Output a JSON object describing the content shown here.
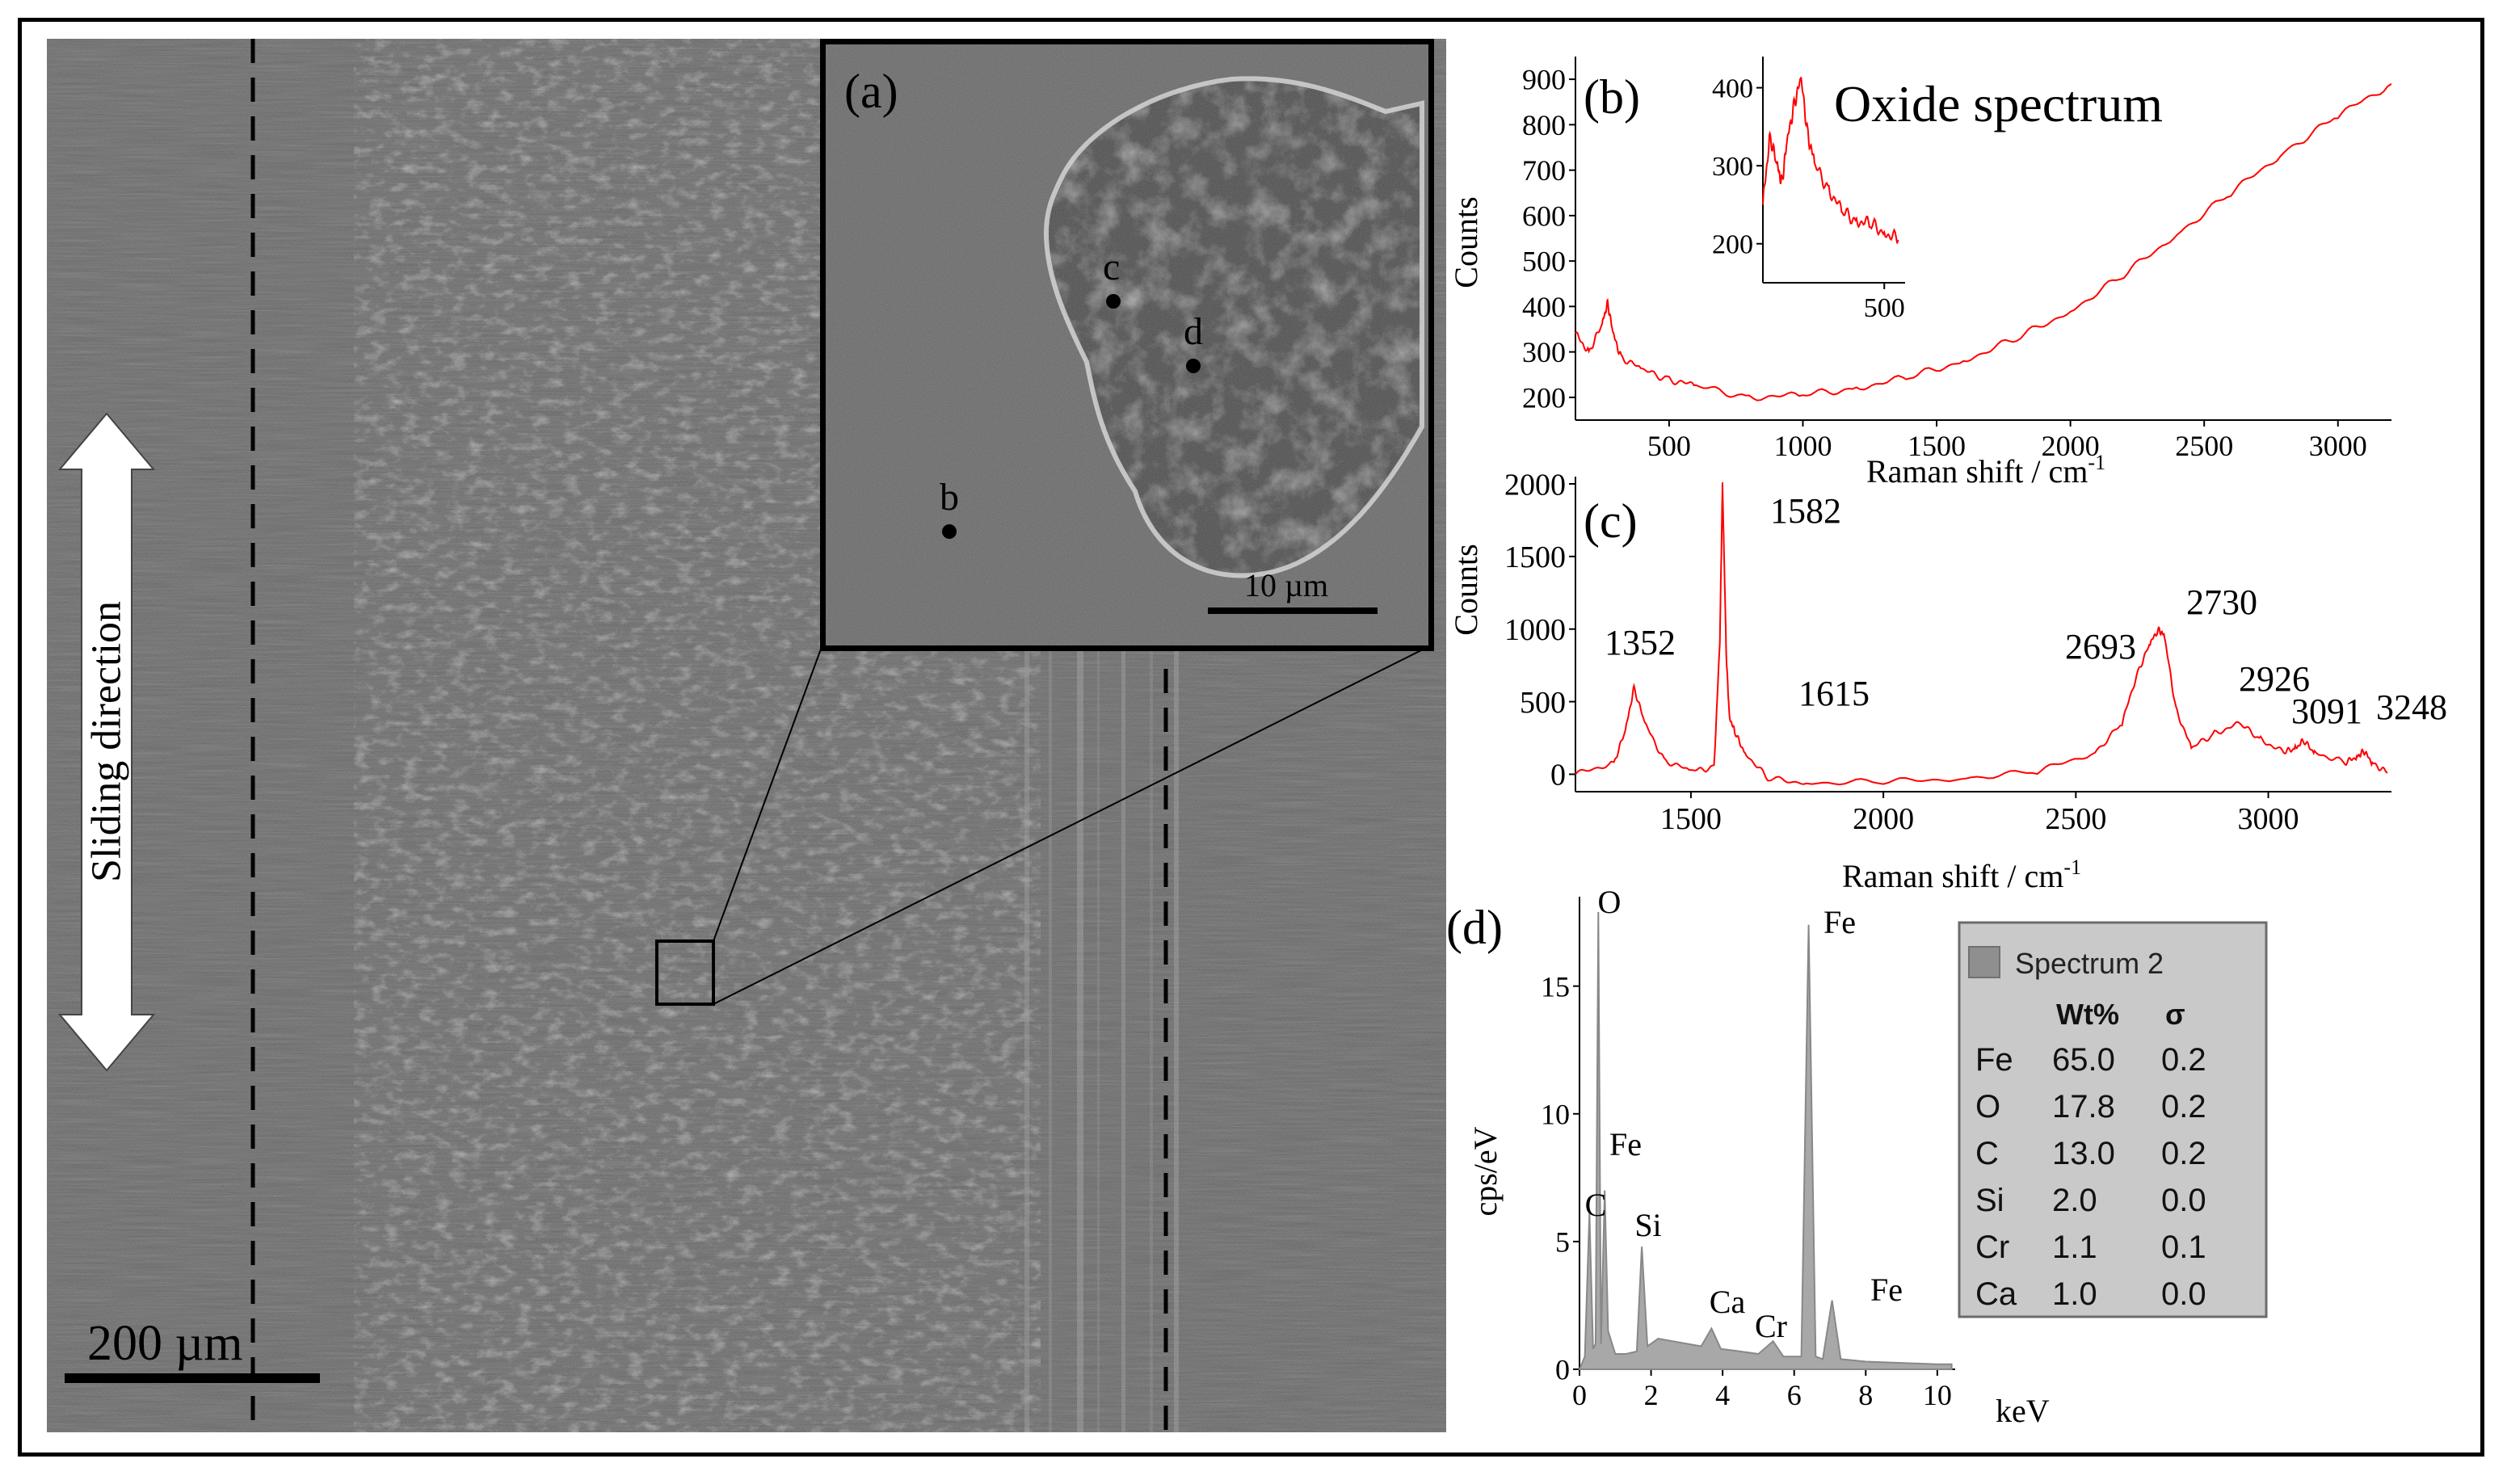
{
  "sem_panel": {
    "scale_bar_label": "200 µm",
    "arrow_label": "Sliding direction"
  },
  "inset_a": {
    "panel_label": "(a)",
    "scale_bar_label": "10 µm",
    "points": [
      "b",
      "c",
      "d"
    ]
  },
  "panel_b": {
    "panel_label": "(b)",
    "title": "Oxide spectrum",
    "ylabel": "Counts",
    "xlabel": "Raman shift / cm",
    "xlabel_sup": "-1"
  },
  "panel_c": {
    "panel_label": "(c)",
    "ylabel": "Counts",
    "xlabel": "Raman shift / cm",
    "xlabel_sup": "-1"
  },
  "panel_d": {
    "panel_label": "(d)",
    "ylabel": "cps/eV",
    "xlabel": "keV"
  },
  "eds_table": {
    "title": "Spectrum 2",
    "col_wt": "Wt%",
    "col_sigma": "σ",
    "rows": [
      {
        "el": "Fe",
        "wt": "65.0",
        "sigma": "0.2"
      },
      {
        "el": "O",
        "wt": "17.8",
        "sigma": "0.2"
      },
      {
        "el": "C",
        "wt": "13.0",
        "sigma": "0.2"
      },
      {
        "el": "Si",
        "wt": "2.0",
        "sigma": "0.0"
      },
      {
        "el": "Cr",
        "wt": "1.1",
        "sigma": "0.1"
      },
      {
        "el": "Ca",
        "wt": "1.0",
        "sigma": "0.0"
      }
    ]
  },
  "colors": {
    "raman": "#ff0000",
    "eds_fill": "#a8a8a8",
    "sem_bg": "#5e5e5e"
  },
  "chart_data": [
    {
      "type": "line",
      "name": "b",
      "xlim": [
        150,
        3200
      ],
      "ylim": [
        150,
        950
      ],
      "xticks": [
        500,
        1000,
        1500,
        2000,
        2500,
        3000
      ],
      "yticks": [
        200,
        300,
        400,
        500,
        600,
        700,
        800,
        900
      ],
      "series": [
        {
          "x": [
            150,
            200,
            250,
            270,
            290,
            320,
            400,
            500,
            600,
            800,
            1000,
            1200,
            1400,
            1600,
            1800,
            2000,
            2200,
            2400,
            2600,
            2800,
            3000,
            3200
          ],
          "y": [
            340,
            300,
            360,
            410,
            340,
            290,
            260,
            240,
            225,
            200,
            205,
            220,
            245,
            280,
            330,
            390,
            470,
            560,
            650,
            740,
            820,
            890
          ]
        }
      ]
    },
    {
      "type": "line",
      "name": "b-inset",
      "xlim": [
        150,
        560
      ],
      "ylim": [
        150,
        440
      ],
      "xticks": [
        500
      ],
      "yticks": [
        200,
        300,
        400
      ],
      "series": [
        {
          "x": [
            150,
            170,
            190,
            205,
            220,
            240,
            260,
            280,
            300,
            340,
            380,
            420,
            460,
            500,
            540
          ],
          "y": [
            250,
            340,
            300,
            280,
            330,
            380,
            410,
            340,
            300,
            270,
            240,
            230,
            225,
            215,
            205
          ]
        }
      ]
    },
    {
      "type": "line",
      "name": "c",
      "xlim": [
        1200,
        3320
      ],
      "ylim": [
        -120,
        2050
      ],
      "xticks": [
        1500,
        2000,
        2500,
        3000
      ],
      "yticks": [
        0,
        500,
        1000,
        1500,
        2000
      ],
      "series": [
        {
          "x": [
            1200,
            1300,
            1330,
            1352,
            1380,
            1430,
            1500,
            1560,
            1575,
            1582,
            1592,
            1600,
            1615,
            1640,
            1700,
            1800,
            2000,
            2200,
            2400,
            2550,
            2620,
            2660,
            2693,
            2715,
            2730,
            2760,
            2800,
            2860,
            2926,
            2980,
            3040,
            3070,
            3091,
            3120,
            3200,
            3230,
            3248,
            3270,
            3310
          ],
          "y": [
            0,
            80,
            300,
            600,
            350,
            100,
            20,
            50,
            900,
            2000,
            800,
            400,
            280,
            150,
            -30,
            -60,
            -50,
            -30,
            20,
            150,
            350,
            700,
            900,
            1000,
            950,
            450,
            180,
            280,
            350,
            240,
            150,
            180,
            230,
            150,
            80,
            120,
            160,
            80,
            10
          ]
        }
      ],
      "annotations": [
        {
          "x": 1352,
          "text": "1352"
        },
        {
          "x": 1582,
          "text": "1582"
        },
        {
          "x": 1615,
          "text": "1615"
        },
        {
          "x": 2693,
          "text": "2693"
        },
        {
          "x": 2730,
          "text": "2730"
        },
        {
          "x": 2926,
          "text": "2926"
        },
        {
          "x": 3091,
          "text": "3091"
        },
        {
          "x": 3248,
          "text": "3248"
        }
      ]
    },
    {
      "type": "area",
      "name": "d",
      "xlim": [
        0,
        10.5
      ],
      "ylim": [
        0,
        18.5
      ],
      "xticks": [
        0,
        2,
        4,
        6,
        8,
        10
      ],
      "yticks": [
        0,
        5,
        10,
        15
      ],
      "series": [
        {
          "x": [
            0.0,
            0.15,
            0.277,
            0.38,
            0.45,
            0.525,
            0.6,
            0.705,
            0.8,
            1.0,
            1.3,
            1.6,
            1.74,
            1.9,
            2.2,
            2.6,
            3.0,
            3.4,
            3.69,
            3.95,
            4.5,
            5.0,
            5.41,
            5.7,
            6.0,
            6.2,
            6.404,
            6.6,
            6.8,
            7.058,
            7.3,
            8.0,
            9.0,
            10.0,
            10.4
          ],
          "y": [
            0.0,
            0.5,
            6.1,
            0.8,
            1.0,
            17.9,
            1.0,
            7.0,
            1.5,
            0.6,
            0.6,
            0.7,
            4.8,
            0.9,
            1.2,
            1.1,
            1.0,
            0.9,
            1.6,
            0.8,
            0.7,
            0.6,
            1.1,
            0.5,
            0.5,
            0.5,
            17.4,
            0.5,
            0.4,
            2.7,
            0.4,
            0.3,
            0.25,
            0.2,
            0.2
          ]
        }
      ],
      "annotations": [
        {
          "x": 0.525,
          "text": "O"
        },
        {
          "x": 0.705,
          "text": "Fe"
        },
        {
          "x": 0.277,
          "text": "C"
        },
        {
          "x": 1.74,
          "text": "Si"
        },
        {
          "x": 3.69,
          "text": "Ca"
        },
        {
          "x": 5.41,
          "text": "Cr"
        },
        {
          "x": 6.404,
          "text": "Fe"
        },
        {
          "x": 7.058,
          "text": "Fe"
        }
      ]
    }
  ]
}
